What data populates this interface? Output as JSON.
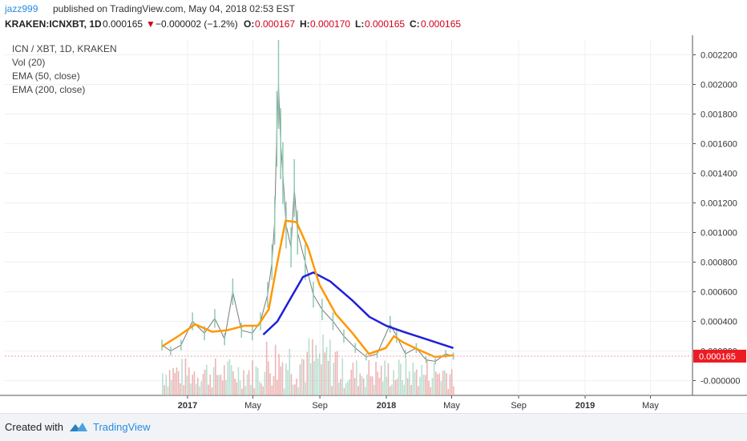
{
  "header": {
    "user": "jazz999",
    "published": "published on TradingView.com, May 04, 2018 02:53 EST"
  },
  "info": {
    "symbol": "KRAKEN:ICNXBT, 1D",
    "price": "0.000165",
    "change": "−0.000002 (−1.2%)",
    "o_label": "O:",
    "o_value": "0.000167",
    "h_label": "H:",
    "h_value": "0.000170",
    "l_label": "L:",
    "l_value": "0.000165",
    "c_label": "C:",
    "c_value": "0.000165",
    "down_color": "#d0021b"
  },
  "legend": {
    "title": "ICN / XBT, 1D, KRAKEN",
    "vol": "Vol (20)",
    "ema50": "EMA (50, close)",
    "ema200": "EMA (200, close)"
  },
  "footer": {
    "created": "Created with",
    "brand": "TradingView"
  },
  "colors": {
    "ema50": "#ff9800",
    "ema200": "#1f1fd9",
    "up": "#a9d6c4",
    "down": "#e9a3a3",
    "price_line": "#f0a0a0",
    "price_badge": "#ec1c24",
    "grid": "#eef0f3"
  },
  "chart_data": {
    "type": "line",
    "title": "ICN / XBT, 1D, KRAKEN",
    "y_range": [
      -0.0001,
      0.0023
    ],
    "y_ticks": [
      "0.002200",
      "0.002000",
      "0.001800",
      "0.001600",
      "0.001400",
      "0.001200",
      "0.001000",
      "0.000800",
      "0.000600",
      "0.000400",
      "0.000200",
      "-0.000000"
    ],
    "x_ticks": [
      "2017",
      "May",
      "Sep",
      "2018",
      "May",
      "Sep",
      "2019",
      "May"
    ],
    "last_price": "0.000165",
    "series": [
      {
        "name": "EMA (50, close)",
        "points": [
          [
            "2016-11-15",
            0.00023
          ],
          [
            "2016-12-15",
            0.0003
          ],
          [
            "2017-01-15",
            0.00038
          ],
          [
            "2017-02-15",
            0.00033
          ],
          [
            "2017-03-15",
            0.00034
          ],
          [
            "2017-04-15",
            0.00037
          ],
          [
            "2017-05-10",
            0.00037
          ],
          [
            "2017-05-30",
            0.00048
          ],
          [
            "2017-06-15",
            0.0008
          ],
          [
            "2017-06-30",
            0.00108
          ],
          [
            "2017-07-20",
            0.00107
          ],
          [
            "2017-08-10",
            0.0009
          ],
          [
            "2017-08-31",
            0.00065
          ],
          [
            "2017-09-30",
            0.00045
          ],
          [
            "2017-10-31",
            0.00032
          ],
          [
            "2017-11-30",
            0.00018
          ],
          [
            "2017-12-31",
            0.00022
          ],
          [
            "2018-01-15",
            0.0003
          ],
          [
            "2018-01-31",
            0.00026
          ],
          [
            "2018-02-28",
            0.00021
          ],
          [
            "2018-03-31",
            0.00016
          ],
          [
            "2018-05-04",
            0.00017
          ]
        ]
      },
      {
        "name": "EMA (200, close)",
        "points": [
          [
            "2017-05-20",
            0.00031
          ],
          [
            "2017-06-15",
            0.0004
          ],
          [
            "2017-07-10",
            0.00056
          ],
          [
            "2017-08-01",
            0.0007
          ],
          [
            "2017-08-20",
            0.00073
          ],
          [
            "2017-09-20",
            0.00067
          ],
          [
            "2017-10-31",
            0.00054
          ],
          [
            "2017-12-01",
            0.00043
          ],
          [
            "2018-01-01",
            0.00037
          ],
          [
            "2018-02-01",
            0.00033
          ],
          [
            "2018-03-15",
            0.00028
          ],
          [
            "2018-05-04",
            0.00022
          ]
        ]
      },
      {
        "name": "price",
        "points": [
          [
            "2016-11-15",
            0.00024
          ],
          [
            "2016-12-01",
            0.0002
          ],
          [
            "2016-12-20",
            0.00024
          ],
          [
            "2017-01-10",
            0.0004
          ],
          [
            "2017-02-01",
            0.00032
          ],
          [
            "2017-02-20",
            0.00042
          ],
          [
            "2017-03-10",
            0.00028
          ],
          [
            "2017-03-25",
            0.0006
          ],
          [
            "2017-04-10",
            0.00034
          ],
          [
            "2017-04-30",
            0.00032
          ],
          [
            "2017-05-15",
            0.0004
          ],
          [
            "2017-05-28",
            0.00058
          ],
          [
            "2017-06-05",
            0.0008
          ],
          [
            "2017-06-10",
            0.00108
          ],
          [
            "2017-06-14",
            0.0017
          ],
          [
            "2017-06-17",
            0.002
          ],
          [
            "2017-06-21",
            0.0016
          ],
          [
            "2017-06-25",
            0.0014
          ],
          [
            "2017-07-01",
            0.00105
          ],
          [
            "2017-07-10",
            0.0009
          ],
          [
            "2017-07-16",
            0.0013
          ],
          [
            "2017-07-22",
            0.001
          ],
          [
            "2017-08-05",
            0.0008
          ],
          [
            "2017-08-20",
            0.00058
          ],
          [
            "2017-09-05",
            0.00048
          ],
          [
            "2017-09-25",
            0.0004
          ],
          [
            "2017-10-15",
            0.0003
          ],
          [
            "2017-11-05",
            0.00022
          ],
          [
            "2017-11-25",
            0.00016
          ],
          [
            "2017-12-15",
            0.00018
          ],
          [
            "2018-01-08",
            0.00038
          ],
          [
            "2018-01-20",
            0.0003
          ],
          [
            "2018-02-05",
            0.00018
          ],
          [
            "2018-02-25",
            0.00022
          ],
          [
            "2018-03-15",
            0.00014
          ],
          [
            "2018-04-01",
            0.00013
          ],
          [
            "2018-04-20",
            0.00018
          ],
          [
            "2018-05-04",
            0.000165
          ]
        ]
      }
    ]
  }
}
